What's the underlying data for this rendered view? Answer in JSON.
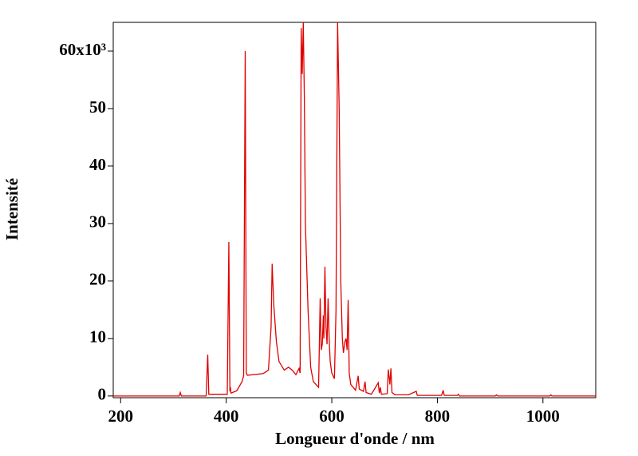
{
  "chart_data": {
    "type": "line",
    "xlabel": "Longueur d'onde / nm",
    "ylabel": "Intensité",
    "xlim": [
      186,
      1100
    ],
    "ylim": [
      -300,
      65000
    ],
    "xticks": [
      200,
      400,
      600,
      800,
      1000
    ],
    "yticks": [
      0,
      {
        "value": 10000,
        "label": "10"
      },
      {
        "value": 20000,
        "label": "20"
      },
      {
        "value": 30000,
        "label": "30"
      },
      {
        "value": 40000,
        "label": "40"
      },
      {
        "value": 50000,
        "label": "50"
      },
      {
        "value": 60000,
        "label": "60x10³"
      }
    ],
    "series": [
      {
        "color": "#e00000",
        "x": [
          186,
          300,
          311,
          313,
          315,
          362,
          365,
          367,
          402,
          405,
          407,
          408,
          409,
          420,
          430,
          433,
          436,
          438,
          440,
          460,
          470,
          480,
          485,
          487,
          490,
          495,
          500,
          510,
          518,
          525,
          532,
          538,
          540,
          542,
          544,
          546,
          548,
          550,
          555,
          560,
          565,
          575,
          578,
          580,
          582,
          584,
          585,
          587,
          589,
          591,
          593,
          595,
          597,
          600,
          605,
          608,
          611,
          614,
          617,
          620,
          622,
          625,
          627,
          629,
          631,
          633,
          636,
          645,
          650,
          652,
          660,
          663,
          665,
          675,
          688,
          690,
          692,
          694,
          705,
          707,
          709,
          710,
          712,
          714,
          720,
          745,
          760,
          762,
          808,
          811,
          813,
          838,
          840,
          842,
          910,
          912,
          914,
          1013,
          1015,
          1017,
          1100
        ],
        "values": [
          0,
          0,
          0,
          600,
          0,
          0,
          7200,
          300,
          300,
          26800,
          800,
          1500,
          500,
          900,
          2500,
          3500,
          60000,
          4000,
          3600,
          3800,
          3900,
          4500,
          12000,
          23000,
          16000,
          9500,
          6000,
          4500,
          5000,
          4500,
          3700,
          4800,
          4000,
          64000,
          56000,
          65000,
          52000,
          30000,
          15000,
          5000,
          2500,
          1500,
          17000,
          8000,
          9000,
          14000,
          10000,
          22500,
          12000,
          9000,
          17000,
          10000,
          6000,
          4000,
          3000,
          15000,
          65000,
          50000,
          20000,
          10000,
          7500,
          9500,
          10000,
          8000,
          16700,
          4000,
          2000,
          1000,
          3500,
          1200,
          800,
          2500,
          600,
          300,
          2300,
          500,
          1500,
          300,
          400,
          4600,
          3000,
          2000,
          4800,
          600,
          200,
          200,
          800,
          100,
          100,
          1000,
          100,
          100,
          300,
          0,
          0,
          200,
          0,
          0,
          200,
          0,
          0
        ]
      }
    ]
  }
}
